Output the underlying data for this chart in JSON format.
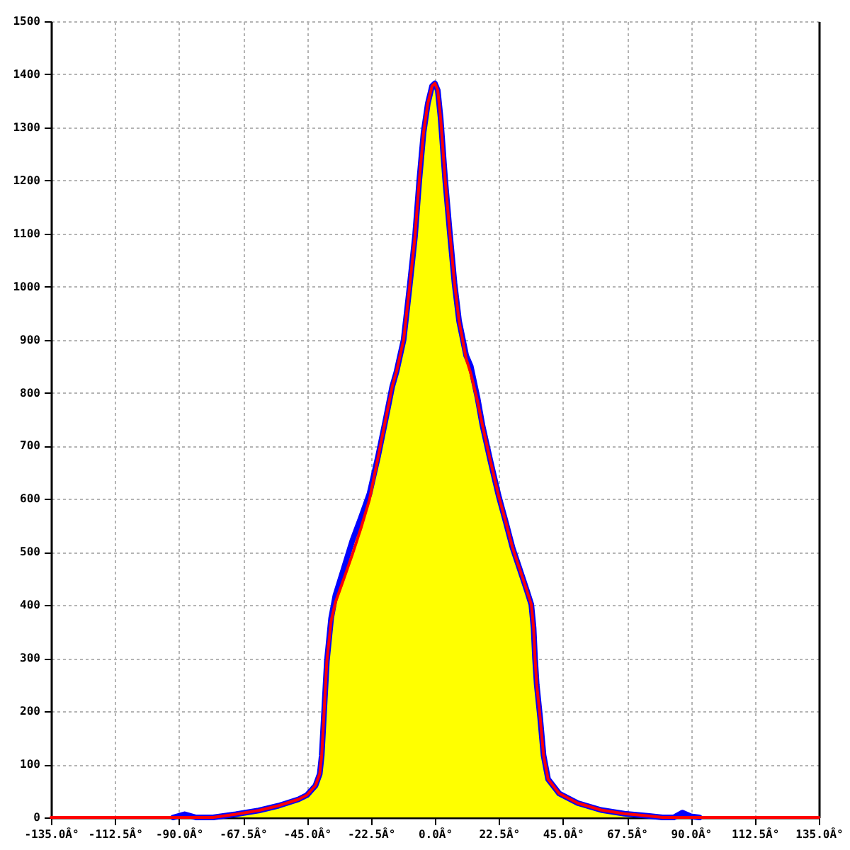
{
  "chart_data": {
    "type": "line",
    "xlim": [
      -135,
      135
    ],
    "ylim": [
      0,
      1500
    ],
    "xticks": [
      {
        "value": -135,
        "label": "-135.0Â°"
      },
      {
        "value": -112.5,
        "label": "-112.5Â°"
      },
      {
        "value": -90,
        "label": "-90.0Â°"
      },
      {
        "value": -67.5,
        "label": "-67.5Â°"
      },
      {
        "value": -45,
        "label": "-45.0Â°"
      },
      {
        "value": -22.5,
        "label": "-22.5Â°"
      },
      {
        "value": 0,
        "label": "0.0Â°"
      },
      {
        "value": 22.5,
        "label": "22.5Â°"
      },
      {
        "value": 45,
        "label": "45.0Â°"
      },
      {
        "value": 67.5,
        "label": "67.5Â°"
      },
      {
        "value": 90,
        "label": "90.0Â°"
      },
      {
        "value": 112.5,
        "label": "112.5Â°"
      },
      {
        "value": 135,
        "label": "135.0Â°"
      }
    ],
    "yticks": [
      0,
      100,
      200,
      300,
      400,
      500,
      600,
      700,
      800,
      900,
      1000,
      1100,
      1200,
      1300,
      1400,
      1500
    ],
    "grid": true,
    "series": [
      {
        "type": "area",
        "color": "#ffff00",
        "x": [
          -78,
          -70,
          -62,
          -55,
          -48,
          -45,
          -42,
          -40.5,
          -39.8,
          -38.9,
          -38,
          -36.5,
          -35,
          -32,
          -29,
          -26,
          -23,
          -20,
          -17.5,
          -15,
          -13.5,
          -11,
          -9,
          -7,
          -5.5,
          -4,
          -2.5,
          -1,
          0,
          1,
          2,
          3.6,
          5.2,
          6.9,
          8.5,
          11,
          12.6,
          15,
          16.7,
          19.5,
          22.4,
          25,
          27.3,
          30,
          32.3,
          33.9,
          34.7,
          35.2,
          35.8,
          37,
          38.2,
          39.8,
          43.7,
          50.2,
          58.4,
          66.6,
          74.8,
          80
        ],
        "values": [
          0,
          6,
          13,
          22,
          34,
          42,
          60,
          82,
          117,
          205,
          294,
          370,
          405,
          450,
          496,
          545,
          599,
          678,
          745,
          812,
          840,
          900,
          995,
          1095,
          1200,
          1290,
          1345,
          1378,
          1383,
          1370,
          1318,
          1202,
          1104,
          1006,
          935,
          864,
          837,
          784,
          739,
          672,
          606,
          555,
          508,
          465,
          428,
          401,
          357,
          300,
          250,
          188,
          117,
          72,
          45,
          27,
          14,
          7,
          3,
          0
        ]
      },
      {
        "color": "#0000ff",
        "x": [
          -92,
          -88,
          -84,
          -78,
          -70,
          -62,
          -55,
          -48,
          -45,
          -42,
          -40.5,
          -39.8,
          -38.9,
          -38,
          -36.5,
          -35,
          -32,
          -29,
          -26,
          -23,
          -20,
          -17.5,
          -15,
          -13.5,
          -11,
          -9,
          -7,
          -5.5,
          -4,
          -2.5,
          -1,
          0,
          1,
          2,
          3.6,
          5.2,
          6.9,
          8.5,
          11,
          12.6,
          15,
          16.7,
          19.5,
          22.4,
          25,
          27.3,
          30,
          32.3,
          33.9,
          34.7,
          35.2,
          35.8,
          37,
          38.2,
          39.8,
          43.7,
          50.2,
          58.4,
          66.6,
          74.8,
          80,
          84,
          87,
          90,
          93
        ],
        "values": [
          0,
          6,
          0,
          0,
          6,
          13,
          22,
          34,
          42,
          60,
          82,
          117,
          205,
          294,
          375,
          418,
          470,
          522,
          565,
          610,
          680,
          745,
          812,
          840,
          900,
          995,
          1095,
          1200,
          1290,
          1345,
          1378,
          1383,
          1370,
          1318,
          1202,
          1104,
          1006,
          935,
          870,
          850,
          790,
          739,
          672,
          606,
          555,
          508,
          465,
          428,
          401,
          357,
          300,
          250,
          188,
          117,
          72,
          45,
          27,
          14,
          7,
          3,
          0,
          0,
          9,
          2,
          0
        ]
      },
      {
        "color": "#ff0000",
        "x": [
          -135,
          -78,
          -70,
          -62,
          -55,
          -48,
          -45,
          -42,
          -40.5,
          -39.8,
          -38.9,
          -38,
          -36.5,
          -35,
          -32,
          -29,
          -26,
          -23,
          -20,
          -17.5,
          -15,
          -13.5,
          -11,
          -9,
          -7,
          -5.5,
          -4,
          -2.5,
          -1,
          0,
          1,
          2,
          3.6,
          5.2,
          6.9,
          8.5,
          11,
          12.6,
          15,
          16.7,
          19.5,
          22.4,
          25,
          27.3,
          30,
          32.3,
          33.9,
          34.7,
          35.2,
          35.8,
          37,
          38.2,
          39.8,
          43.7,
          50.2,
          58.4,
          66.6,
          74.8,
          80,
          135
        ],
        "values": [
          0,
          0,
          6,
          13,
          22,
          34,
          42,
          60,
          82,
          117,
          205,
          294,
          370,
          405,
          450,
          496,
          545,
          599,
          678,
          745,
          812,
          840,
          900,
          995,
          1095,
          1200,
          1290,
          1345,
          1378,
          1383,
          1370,
          1318,
          1202,
          1104,
          1006,
          935,
          864,
          837,
          784,
          739,
          672,
          606,
          555,
          508,
          465,
          428,
          401,
          357,
          300,
          250,
          188,
          117,
          72,
          45,
          27,
          14,
          7,
          3,
          0,
          0
        ]
      }
    ]
  }
}
